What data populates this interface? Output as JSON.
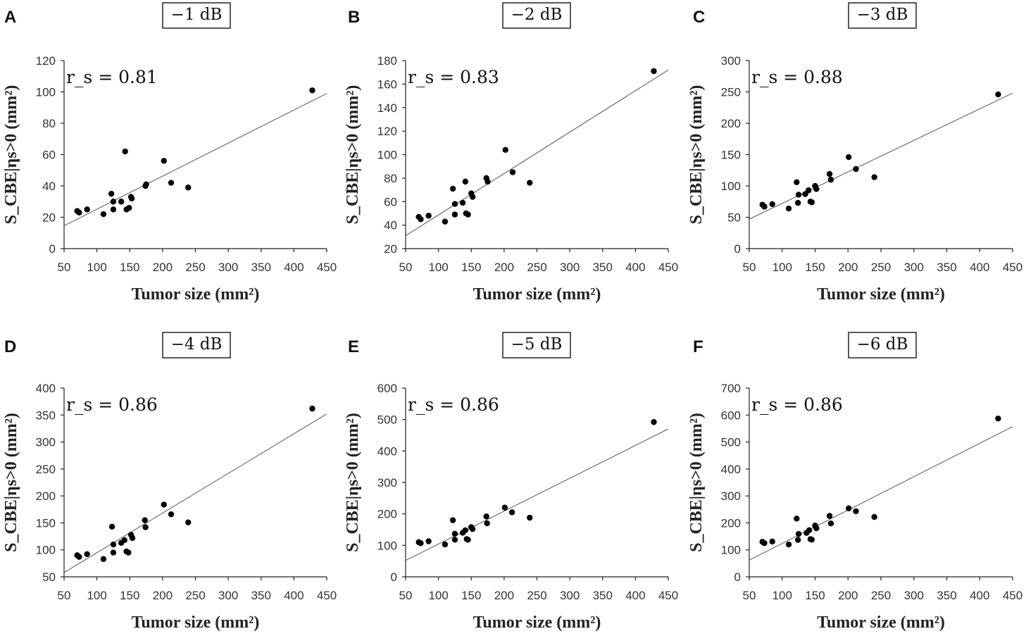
{
  "chart_data": [
    {
      "panel": "A",
      "type": "scatter",
      "title": "−1 dB",
      "stat": "r_s = 0.81",
      "xlabel": "Tumor size (mm²)",
      "ylabel": "S_CBE|ηs>0 (mm²)",
      "xlim": [
        50,
        450
      ],
      "xticks": [
        50,
        100,
        150,
        200,
        250,
        300,
        350,
        400,
        450
      ],
      "ylim": [
        0,
        120
      ],
      "yticks": [
        0,
        20,
        40,
        60,
        80,
        100,
        120
      ],
      "trendline": {
        "x": [
          50,
          450
        ],
        "y": [
          14.6,
          99
        ]
      },
      "x": [
        70,
        73,
        85,
        110,
        122,
        125,
        125,
        137,
        143,
        145,
        149,
        152,
        153,
        174,
        175,
        202,
        213,
        239,
        428
      ],
      "y": [
        24,
        23,
        25,
        22,
        35,
        25,
        30,
        30,
        62,
        25,
        26,
        33,
        32,
        40,
        41,
        56,
        42,
        39,
        101
      ]
    },
    {
      "panel": "B",
      "type": "scatter",
      "title": "−2 dB",
      "stat": "r_s = 0.83",
      "xlabel": "Tumor size (mm²)",
      "ylabel": "S_CBE|ηs>0 (mm²)",
      "xlim": [
        50,
        450
      ],
      "xticks": [
        50,
        100,
        150,
        200,
        250,
        300,
        350,
        400,
        450
      ],
      "ylim": [
        20,
        180
      ],
      "yticks": [
        20,
        40,
        60,
        80,
        100,
        120,
        140,
        160,
        180
      ],
      "trendline": {
        "x": [
          50,
          450
        ],
        "y": [
          31,
          172
        ]
      },
      "x": [
        70,
        73,
        85,
        110,
        122,
        125,
        125,
        137,
        141,
        142,
        145,
        150,
        152,
        173,
        175,
        202,
        213,
        239,
        428
      ],
      "y": [
        47,
        45,
        48,
        43,
        71,
        49,
        58,
        59,
        77,
        50,
        49,
        67,
        64,
        80,
        77,
        104,
        85,
        76,
        171
      ]
    },
    {
      "panel": "C",
      "type": "scatter",
      "title": "−3 dB",
      "stat": "r_s = 0.88",
      "xlabel": "Tumor size (mm²)",
      "ylabel": "S_CBE|ηs>0 (mm²)",
      "xlim": [
        50,
        450
      ],
      "xticks": [
        50,
        100,
        150,
        200,
        250,
        300,
        350,
        400,
        450
      ],
      "ylim": [
        0,
        300
      ],
      "yticks": [
        0,
        50,
        100,
        150,
        200,
        250,
        300
      ],
      "trendline": {
        "x": [
          50,
          450
        ],
        "y": [
          47,
          248
        ]
      },
      "x": [
        70,
        73,
        85,
        110,
        122,
        124,
        125,
        135,
        140,
        143,
        145,
        150,
        152,
        172,
        174,
        201,
        212,
        240,
        428
      ],
      "y": [
        70,
        67,
        71,
        64,
        106,
        73,
        86,
        87,
        93,
        75,
        74,
        100,
        95,
        119,
        110,
        146,
        127,
        114,
        246
      ]
    },
    {
      "panel": "D",
      "type": "scatter",
      "title": "−4 dB",
      "stat": "r_s = 0.86",
      "xlabel": "Tumor size (mm²)",
      "ylabel": "S_CBE|ηs>0 (mm²)",
      "xlim": [
        50,
        450
      ],
      "xticks": [
        50,
        100,
        150,
        200,
        250,
        300,
        350,
        400,
        450
      ],
      "ylim": [
        50,
        400
      ],
      "yticks": [
        50,
        100,
        150,
        200,
        250,
        300,
        350,
        400
      ],
      "trendline": {
        "x": [
          50,
          450
        ],
        "y": [
          58,
          352
        ]
      },
      "x": [
        70,
        73,
        85,
        110,
        123,
        125,
        125,
        137,
        142,
        145,
        148,
        152,
        154,
        173,
        174,
        202,
        213,
        239,
        428
      ],
      "y": [
        90,
        87,
        92,
        83,
        143,
        95,
        110,
        113,
        118,
        97,
        95,
        128,
        122,
        155,
        142,
        184,
        166,
        151,
        362
      ]
    },
    {
      "panel": "E",
      "type": "scatter",
      "title": "−5 dB",
      "stat": "r_s = 0.86",
      "xlabel": "Tumor size (mm²)",
      "ylabel": "S_CBE|ηs>0 (mm²)",
      "xlim": [
        50,
        450
      ],
      "xticks": [
        50,
        100,
        150,
        200,
        250,
        300,
        350,
        400,
        450
      ],
      "ylim": [
        0,
        600
      ],
      "yticks": [
        0,
        100,
        200,
        300,
        400,
        500,
        600
      ],
      "trendline": {
        "x": [
          50,
          450
        ],
        "y": [
          52,
          470
        ]
      },
      "x": [
        70,
        73,
        85,
        110,
        122,
        125,
        125,
        137,
        141,
        143,
        145,
        150,
        152,
        173,
        174,
        201,
        212,
        239,
        428
      ],
      "y": [
        110,
        107,
        113,
        103,
        180,
        118,
        137,
        140,
        148,
        120,
        118,
        158,
        152,
        192,
        170,
        220,
        205,
        188,
        492
      ]
    },
    {
      "panel": "F",
      "type": "scatter",
      "title": "−6 dB",
      "stat": "r_s = 0.86",
      "xlabel": "Tumor size (mm²)",
      "ylabel": "S_CBE|ηs>0 (mm²)",
      "xlim": [
        50,
        450
      ],
      "xticks": [
        50,
        100,
        150,
        200,
        250,
        300,
        350,
        400,
        450
      ],
      "ylim": [
        0,
        700
      ],
      "yticks": [
        0,
        100,
        200,
        300,
        400,
        500,
        600,
        700
      ],
      "trendline": {
        "x": [
          50,
          450
        ],
        "y": [
          62,
          557
        ]
      },
      "x": [
        70,
        73,
        85,
        110,
        122,
        124,
        125,
        137,
        141,
        143,
        145,
        150,
        152,
        172,
        174,
        201,
        212,
        240,
        428
      ],
      "y": [
        130,
        125,
        131,
        120,
        216,
        137,
        159,
        163,
        173,
        140,
        138,
        190,
        180,
        226,
        198,
        254,
        243,
        222,
        587
      ]
    }
  ]
}
